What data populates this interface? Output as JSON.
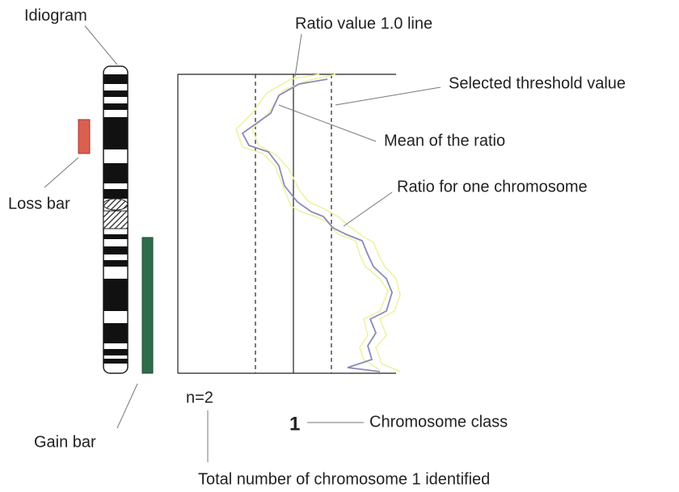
{
  "labels": {
    "idiogram": "Idiogram",
    "ratio_line": "Ratio value 1.0 line",
    "threshold": "Selected threshold value",
    "mean": "Mean of the ratio",
    "ratio": "Ratio for one chromosome",
    "loss_bar": "Loss bar",
    "gain_bar": "Gain bar",
    "count": "n=2",
    "class_number": "1",
    "class_label": "Chromosome class",
    "total": "Total number of chromosome 1 identified"
  }
}
